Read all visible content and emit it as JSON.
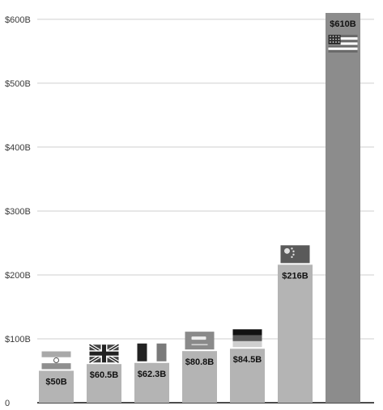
{
  "chart_data": {
    "type": "bar",
    "categories": [
      "India",
      "United Kingdom",
      "France",
      "Saudi Arabia",
      "Germany",
      "China",
      "United States"
    ],
    "values": [
      50,
      60.5,
      62.3,
      80.8,
      84.5,
      216,
      610
    ],
    "value_labels": [
      "$50B",
      "$60.5B",
      "$62.3B",
      "$80.8B",
      "$84.5B",
      "$216B",
      "$610B"
    ],
    "flag_icons": [
      "india-flag-icon",
      "uk-flag-icon",
      "france-flag-icon",
      "saudi-arabia-flag-icon",
      "germany-flag-icon",
      "china-flag-icon",
      "usa-flag-icon"
    ],
    "ylim": [
      0,
      610
    ],
    "yticks": [
      0,
      100,
      200,
      300,
      400,
      500,
      600
    ],
    "ytick_labels": [
      "0",
      "$100B",
      "$200B",
      "$300B",
      "$400B",
      "$500B",
      "$600B"
    ],
    "grid": true,
    "legend": "none",
    "colors": {
      "bar_default": "#b4b4b4",
      "bar_highlight": "#8c8c8c",
      "axis": "#111111",
      "grid": "#cfcfcf"
    }
  }
}
